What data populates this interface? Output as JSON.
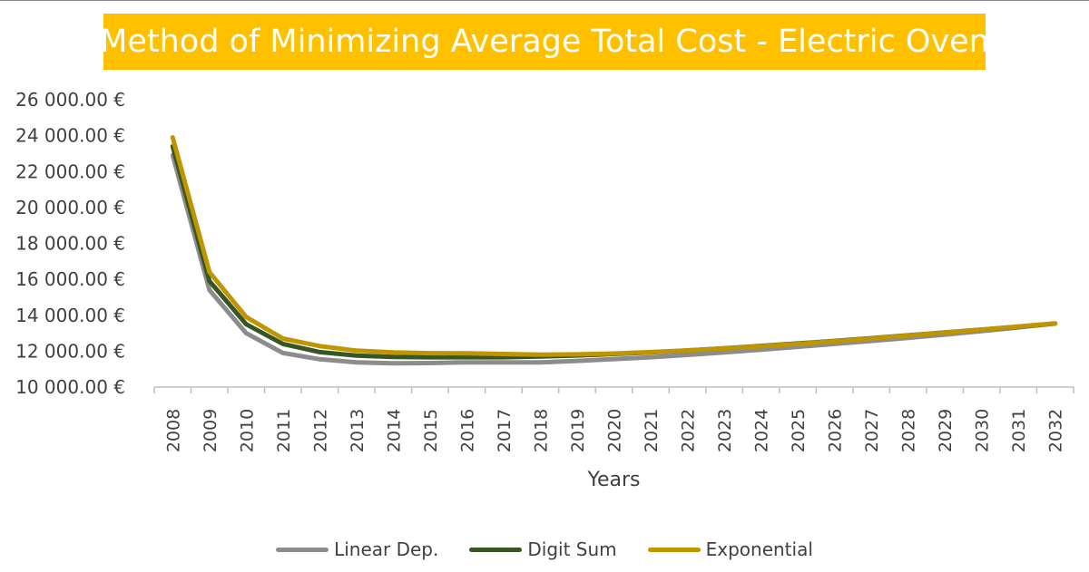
{
  "chart_data": {
    "type": "line",
    "title": "Method of Minimizing Average Total Cost - Electric Oven",
    "xlabel": "Years",
    "ylabel": "",
    "ylim": [
      10000,
      26000
    ],
    "yticks": [
      10000,
      12000,
      14000,
      16000,
      18000,
      20000,
      22000,
      24000,
      26000
    ],
    "ytick_labels": [
      "10 000.00 €",
      "12 000.00 €",
      "14 000.00 €",
      "16 000.00 €",
      "18 000.00 €",
      "20 000.00 €",
      "22 000.00 €",
      "24 000.00 €",
      "26 000.00 €"
    ],
    "grid": false,
    "legend_position": "bottom",
    "categories": [
      "2008",
      "2009",
      "2010",
      "2011",
      "2012",
      "2013",
      "2014",
      "2015",
      "2016",
      "2017",
      "2018",
      "2019",
      "2020",
      "2021",
      "2022",
      "2023",
      "2024",
      "2025",
      "2026",
      "2027",
      "2028",
      "2029",
      "2030",
      "2031",
      "2032"
    ],
    "series": [
      {
        "name": "Linear Dep.",
        "color": "#8c8c8c",
        "values": [
          22900,
          15400,
          13000,
          11900,
          11550,
          11380,
          11320,
          11340,
          11380,
          11380,
          11380,
          11460,
          11560,
          11660,
          11790,
          11930,
          12080,
          12240,
          12400,
          12570,
          12740,
          12920,
          13120,
          13320,
          13540
        ]
      },
      {
        "name": "Digit Sum",
        "color": "#375623",
        "values": [
          23400,
          15900,
          13500,
          12400,
          11950,
          11750,
          11680,
          11660,
          11660,
          11660,
          11700,
          11760,
          11840,
          11930,
          12040,
          12160,
          12290,
          12430,
          12570,
          12720,
          12880,
          13040,
          13200,
          13360,
          13540
        ]
      },
      {
        "name": "Exponential",
        "color": "#c09600",
        "values": [
          23900,
          16400,
          13900,
          12700,
          12280,
          12030,
          11930,
          11890,
          11880,
          11840,
          11800,
          11820,
          11870,
          11950,
          12040,
          12150,
          12270,
          12400,
          12550,
          12700,
          12870,
          13030,
          13200,
          13370,
          13550
        ]
      }
    ]
  },
  "style": {
    "title_bg": "#ffc000",
    "axis_color": "#bfbfbf",
    "text_color": "#404040"
  }
}
